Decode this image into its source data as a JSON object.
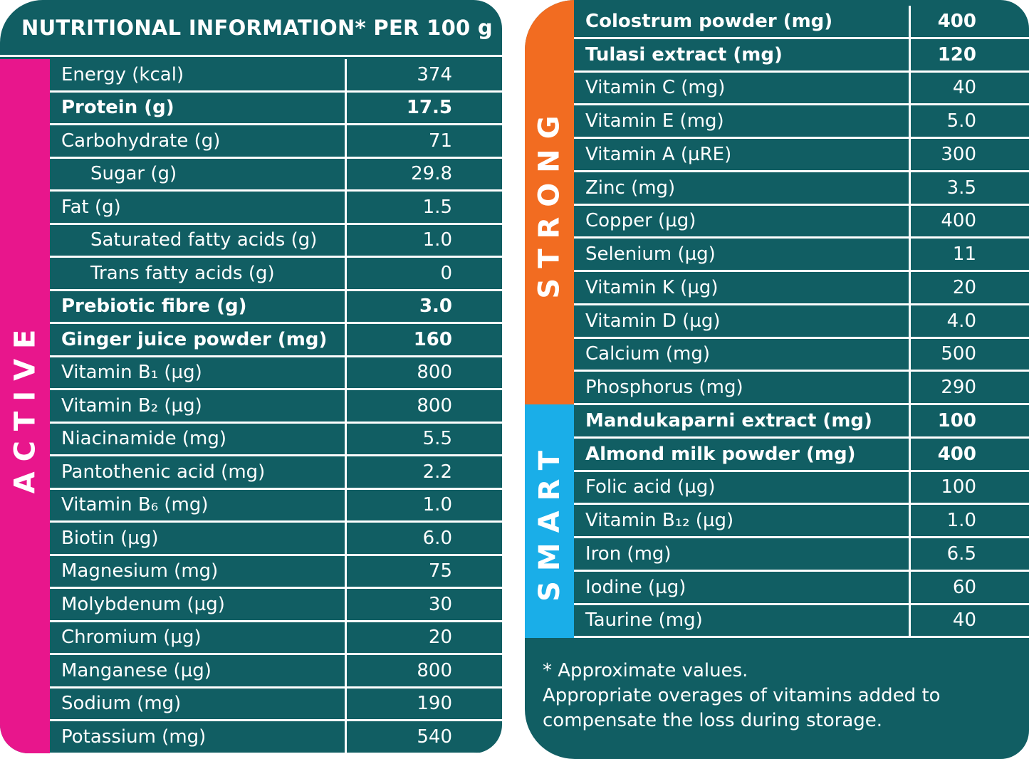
{
  "colors": {
    "panel": "#115e63",
    "active": "#e8168c",
    "strong": "#f26c21",
    "smart": "#1aaee8"
  },
  "left": {
    "title": "NUTRITIONAL INFORMATION* PER 100 g",
    "strip_label": "ACTIVE",
    "rows": [
      {
        "label": "Energy (kcal)",
        "value": "374"
      },
      {
        "label": "Protein (g)",
        "value": "17.5",
        "bold": true
      },
      {
        "label": "Carbohydrate (g)",
        "value": "71"
      },
      {
        "label": "Sugar (g)",
        "value": "29.8",
        "indent": true
      },
      {
        "label": "Fat (g)",
        "value": "1.5"
      },
      {
        "label": "Saturated fatty acids (g)",
        "value": "1.0",
        "indent": true
      },
      {
        "label": "Trans fatty acids (g)",
        "value": "0",
        "indent": true
      },
      {
        "label": "Prebiotic fibre (g)",
        "value": "3.0",
        "bold": true
      },
      {
        "label": "Ginger juice powder (mg)",
        "value": "160",
        "bold": true
      },
      {
        "label": "Vitamin B₁ (µg)",
        "value": "800"
      },
      {
        "label": "Vitamin B₂ (µg)",
        "value": "800"
      },
      {
        "label": "Niacinamide (mg)",
        "value": "5.5"
      },
      {
        "label": "Pantothenic acid (mg)",
        "value": "2.2"
      },
      {
        "label": "Vitamin B₆ (mg)",
        "value": "1.0"
      },
      {
        "label": "Biotin (µg)",
        "value": "6.0"
      },
      {
        "label": "Magnesium (mg)",
        "value": "75"
      },
      {
        "label": "Molybdenum (µg)",
        "value": "30"
      },
      {
        "label": "Chromium (µg)",
        "value": "20"
      },
      {
        "label": "Manganese (µg)",
        "value": "800"
      },
      {
        "label": "Sodium (mg)",
        "value": "190"
      },
      {
        "label": "Potassium (mg)",
        "value": "540"
      }
    ]
  },
  "right": {
    "strong_label": "STRONG",
    "smart_label": "SMART",
    "rows": [
      {
        "label": "Colostrum powder (mg)",
        "value": "400",
        "bold": true
      },
      {
        "label": "Tulasi extract (mg)",
        "value": "120",
        "bold": true
      },
      {
        "label": "Vitamin C (mg)",
        "value": "40"
      },
      {
        "label": "Vitamin E (mg)",
        "value": "5.0"
      },
      {
        "label": "Vitamin A (µRE)",
        "value": "300"
      },
      {
        "label": "Zinc (mg)",
        "value": "3.5"
      },
      {
        "label": "Copper (µg)",
        "value": "400"
      },
      {
        "label": "Selenium (µg)",
        "value": "11"
      },
      {
        "label": "Vitamin K (µg)",
        "value": "20"
      },
      {
        "label": "Vitamin D (µg)",
        "value": "4.0"
      },
      {
        "label": "Calcium (mg)",
        "value": "500"
      },
      {
        "label": "Phosphorus (mg)",
        "value": "290"
      },
      {
        "label": "Mandukaparni extract (mg)",
        "value": "100",
        "bold": true
      },
      {
        "label": "Almond milk powder (mg)",
        "value": "400",
        "bold": true
      },
      {
        "label": "Folic acid (µg)",
        "value": "100"
      },
      {
        "label": "Vitamin B₁₂ (µg)",
        "value": "1.0"
      },
      {
        "label": "Iron (mg)",
        "value": "6.5"
      },
      {
        "label": "Iodine (µg)",
        "value": "60"
      },
      {
        "label": "Taurine (mg)",
        "value": "40"
      }
    ],
    "footnote_1": "* Approximate values.",
    "footnote_2": "Appropriate overages of vitamins added to",
    "footnote_3": "compensate the loss during storage."
  }
}
